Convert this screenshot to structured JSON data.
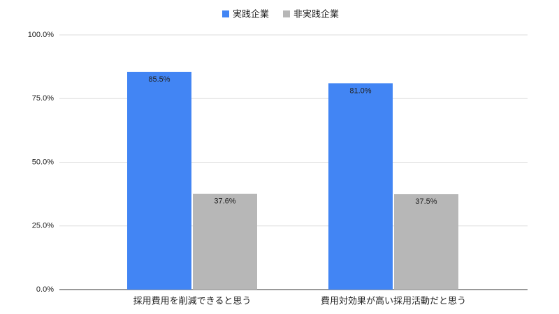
{
  "chart_data": {
    "type": "bar",
    "categories": [
      "採用費用を削減できると思う",
      "費用対効果が高い採用活動だと思う"
    ],
    "series": [
      {
        "name": "実践企業",
        "color": "#4285f4",
        "values": [
          85.5,
          81.0
        ],
        "value_labels": [
          "85.5%",
          "81.0%"
        ]
      },
      {
        "name": "非実践企業",
        "color": "#b7b7b7",
        "values": [
          37.6,
          37.5
        ],
        "value_labels": [
          "37.6%",
          "37.5%"
        ]
      }
    ],
    "ylim": [
      0,
      100
    ],
    "yticks": [
      {
        "value": 0,
        "label": "0.0%"
      },
      {
        "value": 25,
        "label": "25.0%"
      },
      {
        "value": 50,
        "label": "50.0%"
      },
      {
        "value": 75,
        "label": "75.0%"
      },
      {
        "value": 100,
        "label": "100.0%"
      }
    ],
    "grid": true,
    "legend": "top"
  }
}
